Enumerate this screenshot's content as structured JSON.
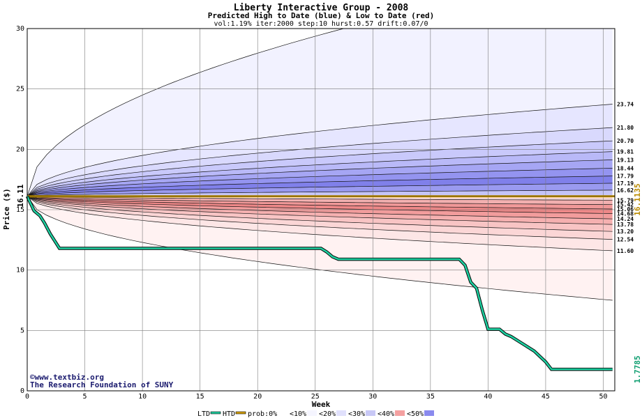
{
  "chart_data": {
    "type": "area",
    "title": "Liberty Interactive Group - 2008",
    "subtitle": "Predicted High to Date (blue) &  Low to Date (red)",
    "params": "vol:1.19% iter:2000 step:10 hurst:0.57 drift:0.07/0",
    "xlabel": "Week",
    "ylabel": "Price ($)",
    "xlim": [
      0,
      51
    ],
    "ylim": [
      0,
      30
    ],
    "xticks": [
      0,
      5,
      10,
      15,
      20,
      25,
      30,
      35,
      40,
      45,
      50
    ],
    "yticks": [
      0,
      5,
      10,
      15,
      20,
      25,
      30
    ],
    "grid": true,
    "start_price": 16.11,
    "start_label": "16.11",
    "upper_bands": [
      {
        "label": "",
        "end": 35.0,
        "fill": "#f2f2ff"
      },
      {
        "label": "23.74",
        "end": 23.74,
        "fill": "#e6e6ff"
      },
      {
        "label": "21.80",
        "end": 21.8,
        "fill": "#d9d9fd"
      },
      {
        "label": "20.70",
        "end": 20.7,
        "fill": "#c9c9fb"
      },
      {
        "label": "19.81",
        "end": 19.81,
        "fill": "#b9b9f8"
      },
      {
        "label": "19.13",
        "end": 19.13,
        "fill": "#a6a6f4"
      },
      {
        "label": "18.44",
        "end": 18.44,
        "fill": "#9494f0"
      },
      {
        "label": "17.79",
        "end": 17.79,
        "fill": "#8080ea"
      },
      {
        "label": "17.19",
        "end": 17.19,
        "fill": "#9a9af0"
      },
      {
        "label": "16.62",
        "end": 16.62,
        "fill": "#c4c4f8"
      }
    ],
    "lower_bands": [
      {
        "label": "15.79",
        "end": 15.79,
        "fill": "#f0d4d4"
      },
      {
        "label": "15.42",
        "end": 15.42,
        "fill": "#f2b0b0"
      },
      {
        "label": "15.06",
        "end": 15.06,
        "fill": "#f09898"
      },
      {
        "label": "14.68",
        "end": 14.68,
        "fill": "#ee8888"
      },
      {
        "label": "14.24",
        "end": 14.24,
        "fill": "#f29c9c"
      },
      {
        "label": "13.78",
        "end": 13.78,
        "fill": "#f5b0b0"
      },
      {
        "label": "13.20",
        "end": 13.2,
        "fill": "#f8c4c4"
      },
      {
        "label": "12.54",
        "end": 12.54,
        "fill": "#fbd6d6"
      },
      {
        "label": "11.60",
        "end": 11.6,
        "fill": "#fde6e6"
      },
      {
        "label": "",
        "end": 7.5,
        "fill": "#fff2f2"
      }
    ],
    "median": {
      "label": "16.1135",
      "value": 16.1135,
      "color": "#d9a400"
    },
    "ltd": {
      "label": "1.7785",
      "color": "#1ecfa0",
      "x": [
        0,
        0.6,
        1.1,
        1.5,
        2.0,
        2.4,
        2.8,
        10,
        20,
        25.5,
        26,
        26.5,
        27,
        37.5,
        38,
        38.5,
        39,
        39.5,
        40,
        41,
        41.5,
        42,
        43,
        44,
        45,
        45.5,
        50.8
      ],
      "y": [
        16.11,
        14.9,
        14.5,
        13.9,
        13.0,
        12.4,
        11.8,
        11.8,
        11.8,
        11.8,
        11.5,
        11.1,
        10.9,
        10.9,
        10.4,
        9.0,
        8.5,
        6.7,
        5.1,
        5.1,
        4.7,
        4.5,
        3.9,
        3.3,
        2.4,
        1.78,
        1.78
      ]
    },
    "legend": [
      {
        "label": "LTD",
        "kind": "line",
        "color": "#1ecfa0"
      },
      {
        "label": "HTD",
        "kind": "line",
        "color": "#d9a400"
      },
      {
        "label": "prob:0%",
        "kind": "swatch",
        "color": "#ffffff"
      },
      {
        "label": "<10%",
        "kind": "swatch",
        "color": "#f5f5ff"
      },
      {
        "label": "<20%",
        "kind": "swatch",
        "color": "#e0e0fc"
      },
      {
        "label": "<30%",
        "kind": "swatch",
        "color": "#c8c8f6"
      },
      {
        "label": "<40%",
        "kind": "swatch",
        "color": "#f4a0a0"
      },
      {
        "label": "<50%",
        "kind": "swatch",
        "color": "#8a8aee"
      }
    ],
    "credit_line1": "©www.textbiz.org",
    "credit_line2": "The Research Foundation of SUNY"
  }
}
